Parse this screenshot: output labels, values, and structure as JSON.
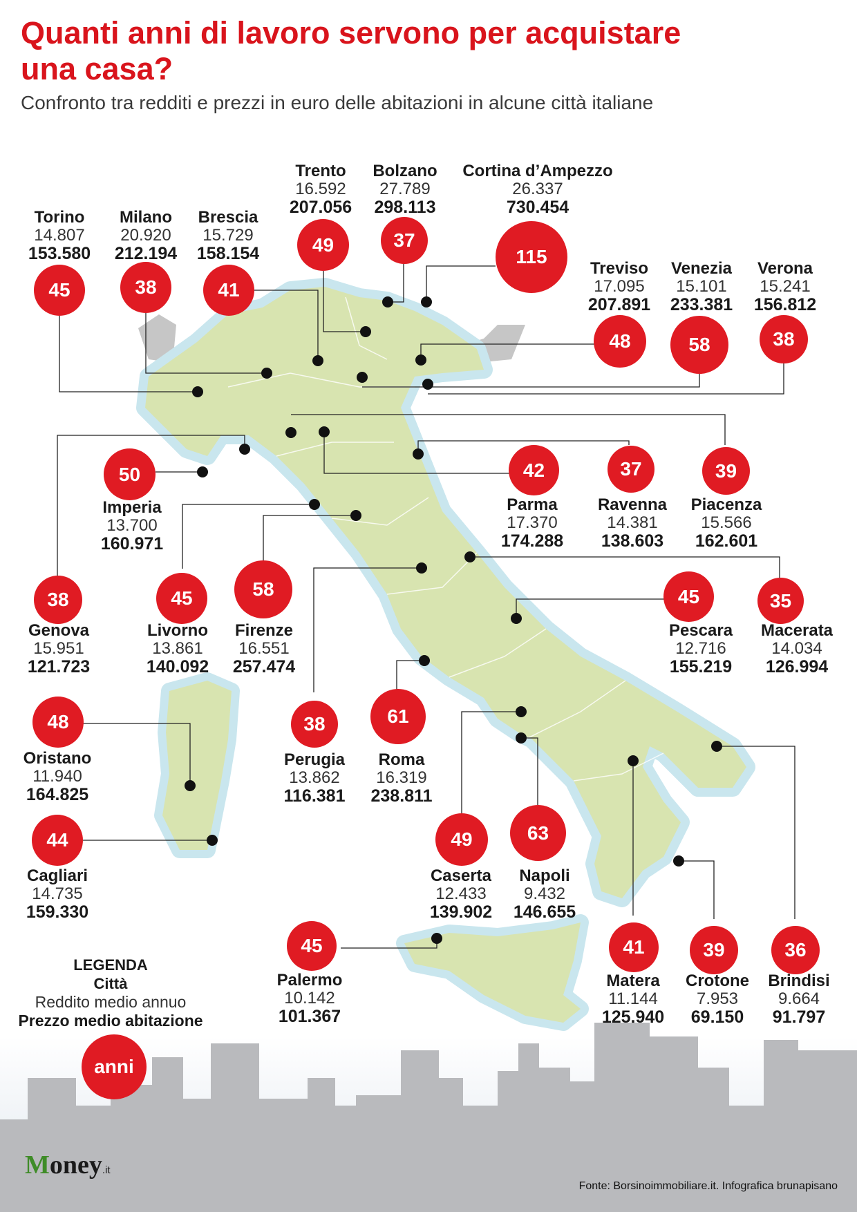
{
  "header": {
    "title": "Quanti anni di lavoro servono per acquistare una casa?",
    "subtitle": "Confronto tra redditi e prezzi in euro delle abitazioni in alcune città italiane"
  },
  "colors": {
    "accent": "#e01b23",
    "land": "#d8e4b0",
    "coast": "#c9e6ee",
    "buildings": "#b9babd"
  },
  "cities": [
    {
      "name": "Torino",
      "income": "14.807",
      "price": "153.580",
      "years": "45"
    },
    {
      "name": "Milano",
      "income": "20.920",
      "price": "212.194",
      "years": "38"
    },
    {
      "name": "Brescia",
      "income": "15.729",
      "price": "158.154",
      "years": "41"
    },
    {
      "name": "Trento",
      "income": "16.592",
      "price": "207.056",
      "years": "49"
    },
    {
      "name": "Bolzano",
      "income": "27.789",
      "price": "298.113",
      "years": "37"
    },
    {
      "name": "Cortina d’Ampezzo",
      "income": "26.337",
      "price": "730.454",
      "years": "115"
    },
    {
      "name": "Treviso",
      "income": "17.095",
      "price": "207.891",
      "years": "48"
    },
    {
      "name": "Venezia",
      "income": "15.101",
      "price": "233.381",
      "years": "58"
    },
    {
      "name": "Verona",
      "income": "15.241",
      "price": "156.812",
      "years": "38"
    },
    {
      "name": "Imperia",
      "income": "13.700",
      "price": "160.971",
      "years": "50"
    },
    {
      "name": "Parma",
      "income": "17.370",
      "price": "174.288",
      "years": "42"
    },
    {
      "name": "Ravenna",
      "income": "14.381",
      "price": "138.603",
      "years": "37"
    },
    {
      "name": "Piacenza",
      "income": "15.566",
      "price": "162.601",
      "years": "39"
    },
    {
      "name": "Genova",
      "income": "15.951",
      "price": "121.723",
      "years": "38"
    },
    {
      "name": "Livorno",
      "income": "13.861",
      "price": "140.092",
      "years": "45"
    },
    {
      "name": "Firenze",
      "income": "16.551",
      "price": "257.474",
      "years": "58"
    },
    {
      "name": "Pescara",
      "income": "12.716",
      "price": "155.219",
      "years": "45"
    },
    {
      "name": "Macerata",
      "income": "14.034",
      "price": "126.994",
      "years": "35"
    },
    {
      "name": "Oristano",
      "income": "11.940",
      "price": "164.825",
      "years": "48"
    },
    {
      "name": "Perugia",
      "income": "13.862",
      "price": "116.381",
      "years": "38"
    },
    {
      "name": "Roma",
      "income": "16.319",
      "price": "238.811",
      "years": "61"
    },
    {
      "name": "Cagliari",
      "income": "14.735",
      "price": "159.330",
      "years": "44"
    },
    {
      "name": "Caserta",
      "income": "12.433",
      "price": "139.902",
      "years": "49"
    },
    {
      "name": "Napoli",
      "income": "9.432",
      "price": "146.655",
      "years": "63"
    },
    {
      "name": "Palermo",
      "income": "10.142",
      "price": "101.367",
      "years": "45"
    },
    {
      "name": "Matera",
      "income": "11.144",
      "price": "125.940",
      "years": "41"
    },
    {
      "name": "Crotone",
      "income": "7.953",
      "price": "69.150",
      "years": "39"
    },
    {
      "name": "Brindisi",
      "income": "9.664",
      "price": "91.797",
      "years": "36"
    }
  ],
  "legend": {
    "title": "LEGENDA",
    "city": "Città",
    "income": "Reddito medio annuo",
    "price": "Prezzo medio abitazione",
    "years": "anni"
  },
  "footer": {
    "logo_main": "oney",
    "logo_initial": "M",
    "logo_suffix": ".it",
    "source": "Fonte: Borsinoimmobiliare.it. Infografica brunapisano"
  }
}
